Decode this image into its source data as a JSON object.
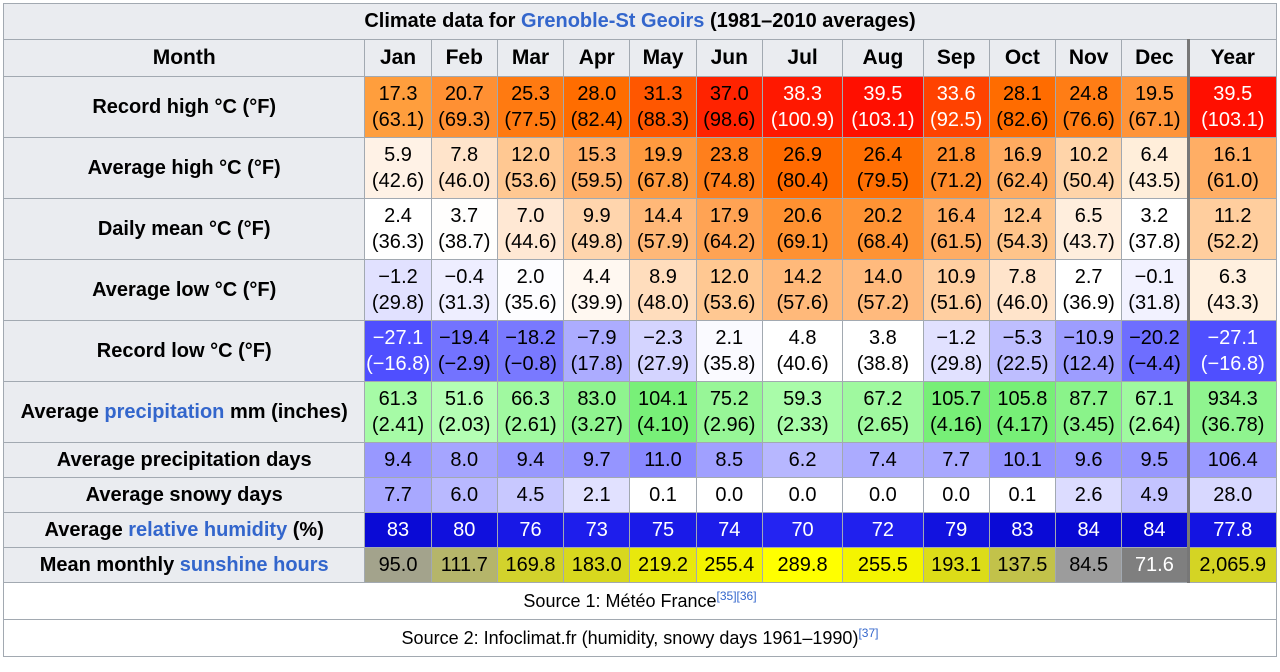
{
  "title": {
    "prefix": "Climate data for ",
    "link": "Grenoble-St Geoirs",
    "suffix": " (1981–2010 averages)"
  },
  "header": {
    "month_label": "Month",
    "months": [
      "Jan",
      "Feb",
      "Mar",
      "Apr",
      "May",
      "Jun",
      "Jul",
      "Aug",
      "Sep",
      "Oct",
      "Nov",
      "Dec"
    ],
    "year_label": "Year"
  },
  "rows": [
    {
      "label_parts": [
        {
          "text": "Record high °C (°F)",
          "link": false
        }
      ],
      "cells": [
        {
          "a": "17.3",
          "b": "(63.1)",
          "bg": "#ff9e3d",
          "fg": "#000000"
        },
        {
          "a": "20.7",
          "b": "(69.3)",
          "bg": "#ff9033",
          "fg": "#000000"
        },
        {
          "a": "25.3",
          "b": "(77.5)",
          "bg": "#ff7a11",
          "fg": "#000000"
        },
        {
          "a": "28.0",
          "b": "(82.4)",
          "bg": "#ff6d00",
          "fg": "#000000"
        },
        {
          "a": "31.3",
          "b": "(88.3)",
          "bg": "#ff5700",
          "fg": "#000000"
        },
        {
          "a": "37.0",
          "b": "(98.6)",
          "bg": "#ff2300",
          "fg": "#000000"
        },
        {
          "a": "38.3",
          "b": "(100.9)",
          "bg": "#ff1800",
          "fg": "#ffffff"
        },
        {
          "a": "39.5",
          "b": "(103.1)",
          "bg": "#ff0f00",
          "fg": "#ffffff"
        },
        {
          "a": "33.6",
          "b": "(92.5)",
          "bg": "#ff4200",
          "fg": "#ffffff"
        },
        {
          "a": "28.1",
          "b": "(82.6)",
          "bg": "#ff6c00",
          "fg": "#000000"
        },
        {
          "a": "24.8",
          "b": "(76.6)",
          "bg": "#ff7d15",
          "fg": "#000000"
        },
        {
          "a": "19.5",
          "b": "(67.1)",
          "bg": "#ff9438",
          "fg": "#000000"
        }
      ],
      "year": {
        "a": "39.5",
        "b": "(103.1)",
        "bg": "#ff0f00",
        "fg": "#ffffff"
      }
    },
    {
      "label_parts": [
        {
          "text": "Average high °C (°F)",
          "link": false
        }
      ],
      "cells": [
        {
          "a": "5.9",
          "b": "(42.6)",
          "bg": "#fff2e6",
          "fg": "#000000"
        },
        {
          "a": "7.8",
          "b": "(46.0)",
          "bg": "#ffe4cb",
          "fg": "#000000"
        },
        {
          "a": "12.0",
          "b": "(53.6)",
          "bg": "#ffc892",
          "fg": "#000000"
        },
        {
          "a": "15.3",
          "b": "(59.5)",
          "bg": "#ffb06a",
          "fg": "#000000"
        },
        {
          "a": "19.9",
          "b": "(67.8)",
          "bg": "#ff9a3f",
          "fg": "#000000"
        },
        {
          "a": "23.8",
          "b": "(74.8)",
          "bg": "#ff7f1c",
          "fg": "#000000"
        },
        {
          "a": "26.9",
          "b": "(80.4)",
          "bg": "#ff6a00",
          "fg": "#000000"
        },
        {
          "a": "26.4",
          "b": "(79.5)",
          "bg": "#ff6f03",
          "fg": "#000000"
        },
        {
          "a": "21.8",
          "b": "(71.2)",
          "bg": "#ff8c2c",
          "fg": "#000000"
        },
        {
          "a": "16.9",
          "b": "(62.4)",
          "bg": "#ffab60",
          "fg": "#000000"
        },
        {
          "a": "10.2",
          "b": "(50.4)",
          "bg": "#ffd4a9",
          "fg": "#000000"
        },
        {
          "a": "6.4",
          "b": "(43.5)",
          "bg": "#ffeeda",
          "fg": "#000000"
        }
      ],
      "year": {
        "a": "16.1",
        "b": "(61.0)",
        "bg": "#ffae65",
        "fg": "#000000"
      }
    },
    {
      "label_parts": [
        {
          "text": "Daily mean °C (°F)",
          "link": false
        }
      ],
      "cells": [
        {
          "a": "2.4",
          "b": "(36.3)",
          "bg": "#ffffff",
          "fg": "#000000"
        },
        {
          "a": "3.7",
          "b": "(38.7)",
          "bg": "#fffefd",
          "fg": "#000000"
        },
        {
          "a": "7.0",
          "b": "(44.6)",
          "bg": "#ffe8d4",
          "fg": "#000000"
        },
        {
          "a": "9.9",
          "b": "(49.8)",
          "bg": "#ffd5ad",
          "fg": "#000000"
        },
        {
          "a": "14.4",
          "b": "(57.9)",
          "bg": "#ffb878",
          "fg": "#000000"
        },
        {
          "a": "17.9",
          "b": "(64.2)",
          "bg": "#ffa354",
          "fg": "#000000"
        },
        {
          "a": "20.6",
          "b": "(69.1)",
          "bg": "#ff9131",
          "fg": "#000000"
        },
        {
          "a": "20.2",
          "b": "(68.4)",
          "bg": "#ff9334",
          "fg": "#000000"
        },
        {
          "a": "16.4",
          "b": "(61.5)",
          "bg": "#ffac63",
          "fg": "#000000"
        },
        {
          "a": "12.4",
          "b": "(54.3)",
          "bg": "#ffc48a",
          "fg": "#000000"
        },
        {
          "a": "6.5",
          "b": "(43.7)",
          "bg": "#ffeedd",
          "fg": "#000000"
        },
        {
          "a": "3.2",
          "b": "(37.8)",
          "bg": "#ffffff",
          "fg": "#000000"
        }
      ],
      "year": {
        "a": "11.2",
        "b": "(52.2)",
        "bg": "#ffce9e",
        "fg": "#000000"
      }
    },
    {
      "label_parts": [
        {
          "text": "Average low °C (°F)",
          "link": false
        }
      ],
      "cells": [
        {
          "a": "−1.2",
          "b": "(29.8)",
          "bg": "#e1e1ff",
          "fg": "#000000"
        },
        {
          "a": "−0.4",
          "b": "(31.3)",
          "bg": "#eeeeff",
          "fg": "#000000"
        },
        {
          "a": "2.0",
          "b": "(35.6)",
          "bg": "#fdfdff",
          "fg": "#000000"
        },
        {
          "a": "4.4",
          "b": "(39.9)",
          "bg": "#fff8f1",
          "fg": "#000000"
        },
        {
          "a": "8.9",
          "b": "(48.0)",
          "bg": "#ffddbd",
          "fg": "#000000"
        },
        {
          "a": "12.0",
          "b": "(53.6)",
          "bg": "#ffc892",
          "fg": "#000000"
        },
        {
          "a": "14.2",
          "b": "(57.6)",
          "bg": "#ffb97a",
          "fg": "#000000"
        },
        {
          "a": "14.0",
          "b": "(57.2)",
          "bg": "#ffba7d",
          "fg": "#000000"
        },
        {
          "a": "10.9",
          "b": "(51.6)",
          "bg": "#ffcfa1",
          "fg": "#000000"
        },
        {
          "a": "7.8",
          "b": "(46.0)",
          "bg": "#ffe4cb",
          "fg": "#000000"
        },
        {
          "a": "2.7",
          "b": "(36.9)",
          "bg": "#ffffff",
          "fg": "#000000"
        },
        {
          "a": "−0.1",
          "b": "(31.8)",
          "bg": "#f2f2ff",
          "fg": "#000000"
        }
      ],
      "year": {
        "a": "6.3",
        "b": "(43.3)",
        "bg": "#fff0df",
        "fg": "#000000"
      }
    },
    {
      "label_parts": [
        {
          "text": "Record low °C (°F)",
          "link": false
        }
      ],
      "cells": [
        {
          "a": "−27.1",
          "b": "(−16.8)",
          "bg": "#4f4fff",
          "fg": "#ffffff"
        },
        {
          "a": "−19.4",
          "b": "(−2.9)",
          "bg": "#7373ff",
          "fg": "#000000"
        },
        {
          "a": "−18.2",
          "b": "(−0.8)",
          "bg": "#7979ff",
          "fg": "#000000"
        },
        {
          "a": "−7.9",
          "b": "(17.8)",
          "bg": "#acacff",
          "fg": "#000000"
        },
        {
          "a": "−2.3",
          "b": "(27.9)",
          "bg": "#d4d4ff",
          "fg": "#000000"
        },
        {
          "a": "2.1",
          "b": "(35.8)",
          "bg": "#fafaff",
          "fg": "#000000"
        },
        {
          "a": "4.8",
          "b": "(40.6)",
          "bg": "#ffffff",
          "fg": "#000000"
        },
        {
          "a": "3.8",
          "b": "(38.8)",
          "bg": "#ffffff",
          "fg": "#000000"
        },
        {
          "a": "−1.2",
          "b": "(29.8)",
          "bg": "#e1e1ff",
          "fg": "#000000"
        },
        {
          "a": "−5.3",
          "b": "(22.5)",
          "bg": "#bebeff",
          "fg": "#000000"
        },
        {
          "a": "−10.9",
          "b": "(12.4)",
          "bg": "#9d9dff",
          "fg": "#000000"
        },
        {
          "a": "−20.2",
          "b": "(−4.4)",
          "bg": "#6e6eff",
          "fg": "#000000"
        }
      ],
      "year": {
        "a": "−27.1",
        "b": "(−16.8)",
        "bg": "#4f4fff",
        "fg": "#ffffff"
      }
    },
    {
      "label_parts": [
        {
          "text": "Average ",
          "link": false
        },
        {
          "text": "precipitation",
          "link": true
        },
        {
          "text": " mm (inches)",
          "link": false
        }
      ],
      "cells": [
        {
          "a": "61.3",
          "b": "(2.41)",
          "bg": "#a6fba6",
          "fg": "#000000"
        },
        {
          "a": "51.6",
          "b": "(2.03)",
          "bg": "#b4feb4",
          "fg": "#000000"
        },
        {
          "a": "66.3",
          "b": "(2.61)",
          "bg": "#a0f9a0",
          "fg": "#000000"
        },
        {
          "a": "83.0",
          "b": "(3.27)",
          "bg": "#8ff48f",
          "fg": "#000000"
        },
        {
          "a": "104.1",
          "b": "(4.10)",
          "bg": "#78f078",
          "fg": "#000000"
        },
        {
          "a": "75.2",
          "b": "(2.96)",
          "bg": "#97f697",
          "fg": "#000000"
        },
        {
          "a": "59.3",
          "b": "(2.33)",
          "bg": "#a9fca9",
          "fg": "#000000"
        },
        {
          "a": "67.2",
          "b": "(2.65)",
          "bg": "#9ff99f",
          "fg": "#000000"
        },
        {
          "a": "105.7",
          "b": "(4.16)",
          "bg": "#77ef77",
          "fg": "#000000"
        },
        {
          "a": "105.8",
          "b": "(4.17)",
          "bg": "#77ef77",
          "fg": "#000000"
        },
        {
          "a": "87.7",
          "b": "(3.45)",
          "bg": "#8af38a",
          "fg": "#000000"
        },
        {
          "a": "67.1",
          "b": "(2.64)",
          "bg": "#9ff99f",
          "fg": "#000000"
        }
      ],
      "year": {
        "a": "934.3",
        "b": "(36.78)",
        "bg": "#8ff48f",
        "fg": "#000000"
      }
    },
    {
      "label_parts": [
        {
          "text": "Average precipitation days",
          "link": false
        }
      ],
      "single": true,
      "cells": [
        {
          "a": "9.4",
          "bg": "#9898ff",
          "fg": "#000000"
        },
        {
          "a": "8.0",
          "bg": "#a5a5ff",
          "fg": "#000000"
        },
        {
          "a": "9.4",
          "bg": "#9898ff",
          "fg": "#000000"
        },
        {
          "a": "9.7",
          "bg": "#9595ff",
          "fg": "#000000"
        },
        {
          "a": "11.0",
          "bg": "#8888ff",
          "fg": "#000000"
        },
        {
          "a": "8.5",
          "bg": "#a0a0ff",
          "fg": "#000000"
        },
        {
          "a": "6.2",
          "bg": "#b7b7ff",
          "fg": "#000000"
        },
        {
          "a": "7.4",
          "bg": "#ababff",
          "fg": "#000000"
        },
        {
          "a": "7.7",
          "bg": "#a8a8ff",
          "fg": "#000000"
        },
        {
          "a": "10.1",
          "bg": "#9191ff",
          "fg": "#000000"
        },
        {
          "a": "9.6",
          "bg": "#9696ff",
          "fg": "#000000"
        },
        {
          "a": "9.5",
          "bg": "#9797ff",
          "fg": "#000000"
        }
      ],
      "year": {
        "a": "106.4",
        "bg": "#9a9aff",
        "fg": "#000000"
      }
    },
    {
      "label_parts": [
        {
          "text": "Average snowy days",
          "link": false
        }
      ],
      "single": true,
      "cells": [
        {
          "a": "7.7",
          "bg": "#a8a8ff",
          "fg": "#000000"
        },
        {
          "a": "6.0",
          "bg": "#b9b9ff",
          "fg": "#000000"
        },
        {
          "a": "4.5",
          "bg": "#c8c8ff",
          "fg": "#000000"
        },
        {
          "a": "2.1",
          "bg": "#e1e1ff",
          "fg": "#000000"
        },
        {
          "a": "0.1",
          "bg": "#ffffff",
          "fg": "#000000"
        },
        {
          "a": "0.0",
          "bg": "#ffffff",
          "fg": "#000000"
        },
        {
          "a": "0.0",
          "bg": "#ffffff",
          "fg": "#000000"
        },
        {
          "a": "0.0",
          "bg": "#ffffff",
          "fg": "#000000"
        },
        {
          "a": "0.0",
          "bg": "#ffffff",
          "fg": "#000000"
        },
        {
          "a": "0.1",
          "bg": "#ffffff",
          "fg": "#000000"
        },
        {
          "a": "2.6",
          "bg": "#dcdcff",
          "fg": "#000000"
        },
        {
          "a": "4.9",
          "bg": "#c4c4ff",
          "fg": "#000000"
        }
      ],
      "year": {
        "a": "28.0",
        "bg": "#d8d8ff",
        "fg": "#000000"
      }
    },
    {
      "label_parts": [
        {
          "text": "Average ",
          "link": false
        },
        {
          "text": "relative humidity",
          "link": true
        },
        {
          "text": " (%)",
          "link": false
        }
      ],
      "single": true,
      "cells": [
        {
          "a": "83",
          "bg": "#0a0ad6",
          "fg": "#ffffff"
        },
        {
          "a": "80",
          "bg": "#1010dd",
          "fg": "#ffffff"
        },
        {
          "a": "76",
          "bg": "#1818e6",
          "fg": "#ffffff"
        },
        {
          "a": "73",
          "bg": "#1e1eec",
          "fg": "#ffffff"
        },
        {
          "a": "75",
          "bg": "#1a1ae8",
          "fg": "#ffffff"
        },
        {
          "a": "74",
          "bg": "#1c1cea",
          "fg": "#ffffff"
        },
        {
          "a": "70",
          "bg": "#2424f2",
          "fg": "#ffffff"
        },
        {
          "a": "72",
          "bg": "#2020ee",
          "fg": "#ffffff"
        },
        {
          "a": "79",
          "bg": "#1212df",
          "fg": "#ffffff"
        },
        {
          "a": "83",
          "bg": "#0a0ad6",
          "fg": "#ffffff"
        },
        {
          "a": "84",
          "bg": "#0808d4",
          "fg": "#ffffff"
        },
        {
          "a": "84",
          "bg": "#0808d4",
          "fg": "#ffffff"
        }
      ],
      "year": {
        "a": "77.8",
        "bg": "#1414e2",
        "fg": "#ffffff"
      }
    },
    {
      "label_parts": [
        {
          "text": "Mean monthly ",
          "link": false
        },
        {
          "text": "sunshine hours",
          "link": true
        }
      ],
      "single": true,
      "cells": [
        {
          "a": "95.0",
          "bg": "#a3a38c",
          "fg": "#000000"
        },
        {
          "a": "111.7",
          "bg": "#b5b56a",
          "fg": "#000000"
        },
        {
          "a": "169.8",
          "bg": "#d2d22c",
          "fg": "#000000"
        },
        {
          "a": "183.0",
          "bg": "#d8d81e",
          "fg": "#000000"
        },
        {
          "a": "219.2",
          "bg": "#e8e80c",
          "fg": "#000000"
        },
        {
          "a": "255.4",
          "bg": "#f4f400",
          "fg": "#000000"
        },
        {
          "a": "289.8",
          "bg": "#ffff00",
          "fg": "#000000"
        },
        {
          "a": "255.5",
          "bg": "#f4f400",
          "fg": "#000000"
        },
        {
          "a": "193.1",
          "bg": "#dcdc18",
          "fg": "#000000"
        },
        {
          "a": "137.5",
          "bg": "#c2c24a",
          "fg": "#000000"
        },
        {
          "a": "84.5",
          "bg": "#9c9c9c",
          "fg": "#000000"
        },
        {
          "a": "71.6",
          "bg": "#7f7f7f",
          "fg": "#ffffff"
        }
      ],
      "year": {
        "a": "2,065.9",
        "bg": "#d4d424",
        "fg": "#000000"
      }
    }
  ],
  "sources": [
    {
      "text": "Source 1: Météo France",
      "refs": [
        "[35]",
        "[36]"
      ]
    },
    {
      "text": "Source 2: Infoclimat.fr (humidity, snowy days 1961–1990)",
      "refs": [
        "[37]"
      ]
    }
  ]
}
